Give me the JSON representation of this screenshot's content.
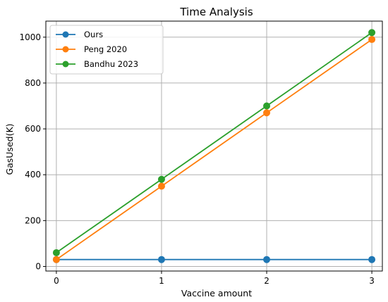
{
  "chart_data": {
    "type": "line",
    "title": "Time Analysis",
    "xlabel": "Vaccine amount",
    "ylabel": "GasUsed(K)",
    "x": [
      0,
      1,
      2,
      3
    ],
    "xlim": [
      -0.1,
      3.1
    ],
    "ylim": [
      -20,
      1070
    ],
    "xticks": [
      0,
      1,
      2,
      3
    ],
    "yticks": [
      0,
      200,
      400,
      600,
      800,
      1000
    ],
    "grid": true,
    "legend_position": "top-left",
    "series": [
      {
        "name": "Ours",
        "color": "#1f77b4",
        "values": [
          30,
          30,
          30,
          30
        ]
      },
      {
        "name": "Peng 2020",
        "color": "#ff7f0e",
        "values": [
          30,
          350,
          670,
          990
        ]
      },
      {
        "name": "Bandhu 2023",
        "color": "#2ca02c",
        "values": [
          60,
          380,
          700,
          1020
        ]
      }
    ]
  }
}
